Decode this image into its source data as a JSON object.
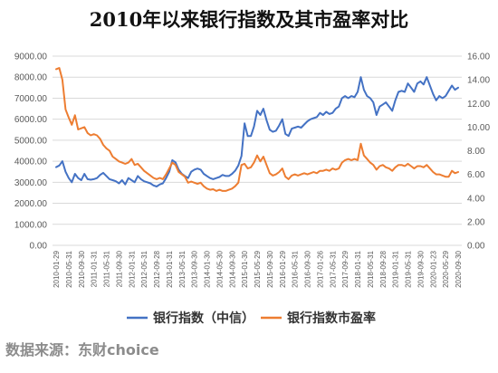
{
  "chart_data": {
    "type": "line",
    "title": "2010年以来银行指数及其市盈率对比",
    "source": "数据来源：东财choice",
    "colors": {
      "index": "#4472C4",
      "pe": "#ED7D31",
      "grid": "#d9d9d9",
      "axis": "#bfbfbf"
    },
    "y_left": {
      "min": 0,
      "max": 9000,
      "ticks": [
        "0.00",
        "1000.00",
        "2000.00",
        "3000.00",
        "4000.00",
        "5000.00",
        "6000.00",
        "7000.00",
        "8000.00",
        "9000.00"
      ]
    },
    "y_right": {
      "min": 0,
      "max": 16,
      "ticks": [
        "0.00",
        "2.00",
        "4.00",
        "6.00",
        "8.00",
        "10.00",
        "12.00",
        "14.00",
        "16.00"
      ]
    },
    "x_ticks": [
      "2010-01-29",
      "2010-05-31",
      "2010-09-30",
      "2011-01-31",
      "2011-05-31",
      "2011-09-30",
      "2012-01-31",
      "2012-05-31",
      "2012-09-28",
      "2013-01-31",
      "2013-05-31",
      "2013-09-30",
      "2014-01-30",
      "2014-05-30",
      "2014-09-30",
      "2015-01-30",
      "2015-05-29",
      "2015-09-30",
      "2016-01-29",
      "2016-05-31",
      "2016-09-30",
      "2017-01-26",
      "2017-05-31",
      "2017-09-29",
      "2018-01-31",
      "2018-05-31",
      "2018-09-28",
      "2019-01-31",
      "2019-05-31",
      "2019-09-30",
      "2020-01-23",
      "2020-05-29",
      "2020-09-30"
    ],
    "series": [
      {
        "name": "银行指数（中信）",
        "axis": "left",
        "values": [
          3720,
          3800,
          4000,
          3500,
          3200,
          3000,
          3400,
          3200,
          3100,
          3400,
          3150,
          3120,
          3150,
          3200,
          3350,
          3450,
          3300,
          3150,
          3100,
          3050,
          2950,
          3100,
          2900,
          3200,
          3100,
          3000,
          3300,
          3150,
          3050,
          3000,
          2950,
          2850,
          2800,
          2900,
          2950,
          3200,
          3500,
          4050,
          3950,
          3600,
          3400,
          3300,
          3200,
          3500,
          3600,
          3650,
          3600,
          3400,
          3300,
          3200,
          3150,
          3200,
          3250,
          3350,
          3300,
          3300,
          3400,
          3550,
          3800,
          4250,
          5800,
          5200,
          5200,
          5650,
          6400,
          6200,
          6500,
          5950,
          5500,
          5400,
          5450,
          5700,
          6000,
          5300,
          5200,
          5550,
          5600,
          5650,
          5600,
          5750,
          5900,
          6000,
          6050,
          6100,
          6300,
          6200,
          6350,
          6250,
          6300,
          6500,
          6600,
          7000,
          7100,
          7000,
          7100,
          7050,
          7300,
          8000,
          7400,
          7100,
          7000,
          6800,
          6200,
          6600,
          6700,
          6800,
          6600,
          6400,
          6900,
          7300,
          7350,
          7300,
          7700,
          7500,
          7300,
          7700,
          7800,
          7650,
          8000,
          7600,
          7200,
          6900,
          7100,
          7000,
          7100,
          7350,
          7600,
          7400,
          7500
        ],
        "labels": []
      },
      {
        "name": "银行指数市盈率",
        "axis": "right",
        "values": [
          14.9,
          15.0,
          14.0,
          11.5,
          10.8,
          10.2,
          11.0,
          9.8,
          9.9,
          10.0,
          9.5,
          9.3,
          9.4,
          9.3,
          9.0,
          8.5,
          8.2,
          8.0,
          7.5,
          7.3,
          7.1,
          7.0,
          6.9,
          7.0,
          7.3,
          6.8,
          6.9,
          6.6,
          6.3,
          6.1,
          5.9,
          5.7,
          5.6,
          5.7,
          5.6,
          6.0,
          6.5,
          7.0,
          6.8,
          6.2,
          6.0,
          5.8,
          5.3,
          5.4,
          5.3,
          5.2,
          5.3,
          5.0,
          4.8,
          4.7,
          4.75,
          4.6,
          4.7,
          4.6,
          4.6,
          4.7,
          4.8,
          5.0,
          5.3,
          6.8,
          6.9,
          6.5,
          6.6,
          7.0,
          7.6,
          7.1,
          7.5,
          6.8,
          6.1,
          5.9,
          6.0,
          6.2,
          6.5,
          5.8,
          5.6,
          5.9,
          6.0,
          5.9,
          6.0,
          6.1,
          6.0,
          6.1,
          6.2,
          6.1,
          6.3,
          6.3,
          6.4,
          6.3,
          6.5,
          6.4,
          6.5,
          7.0,
          7.2,
          7.3,
          7.2,
          7.3,
          7.2,
          8.6,
          7.6,
          7.3,
          7.0,
          6.8,
          6.4,
          6.7,
          6.8,
          6.6,
          6.5,
          6.3,
          6.6,
          6.8,
          6.8,
          6.7,
          6.9,
          6.7,
          6.5,
          6.7,
          6.7,
          6.6,
          6.8,
          6.5,
          6.2,
          6.0,
          6.0,
          5.9,
          5.8,
          5.8,
          6.3,
          6.1,
          6.2
        ],
        "labels": []
      }
    ],
    "legend": {
      "position": "bottom"
    }
  }
}
